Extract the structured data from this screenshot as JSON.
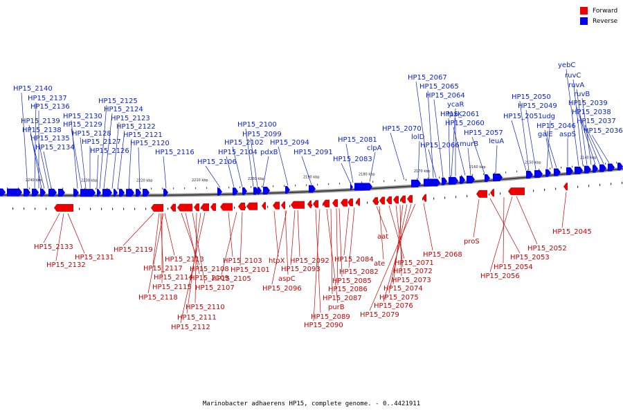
{
  "legend": {
    "forward_label": "Forward",
    "reverse_label": "Reverse",
    "forward_color": "#ee0000",
    "reverse_color": "#0000ee"
  },
  "caption": "Marinobacter adhaerens HP15, complete genome. - 0..4421911",
  "ticks": [
    "2240 kbp",
    "2230 kbp",
    "2220 kbp",
    "2210 kbp",
    "2200 kbp",
    "2190 kbp",
    "2180 kbp",
    "2170 kbp",
    "2160 kbp",
    "2150 kbp",
    "2140 kbp"
  ],
  "reverse_labels": [
    "HP15_2140",
    "HP15_2137",
    "HP15_2136",
    "HP15_2139",
    "HP15_2138",
    "HP15_2135",
    "HP15_2134",
    "HP15_2130",
    "HP15_2129",
    "HP15_2128",
    "HP15_2127",
    "HP15_2126",
    "HP15_2125",
    "HP15_2124",
    "HP15_2123",
    "HP15_2122",
    "HP15_2121",
    "HP15_2120",
    "HP15_2116",
    "HP15_2106",
    "HP15_2104",
    "HP15_2102",
    "HP15_2100",
    "HP15_2099",
    "pdxB",
    "HP15_2094",
    "HP15_2091",
    "HP15_2081",
    "clpA",
    "HP15_2083",
    "HP15_2070",
    "lolD",
    "HP15_2067",
    "HP15_2065",
    "HP15_2064",
    "ycaR",
    "HP15_2066",
    "lpxK",
    "HP15_2061",
    "HP15_2060",
    "murB",
    "HP15_2057",
    "leuA",
    "HP15_2050",
    "HP15_2049",
    "HP15_2051",
    "udg",
    "galE",
    "HP15_2046",
    "aspS",
    "yebC",
    "ruvC",
    "ruvA",
    "ruvB",
    "HP15_2039",
    "HP15_2038",
    "HP15_2037",
    "HP15_2036"
  ],
  "forward_labels": [
    "HP15_2133",
    "HP15_2131",
    "HP15_2132",
    "HP15_2119",
    "HP15_2113",
    "HP15_2117",
    "HP15_2114",
    "HP15_2115",
    "HP15_2118",
    "HP15_2108",
    "HP15_2109",
    "HP15_2107",
    "HP15_2110",
    "HP15_2111",
    "HP15_2112",
    "HP15_2103",
    "HP15_2101",
    "HP15_2105",
    "htpX",
    "aspC",
    "HP15_2096",
    "HP15_2092",
    "HP15_2093",
    "HP15_2089",
    "HP15_2090",
    "purB",
    "HP15_2087",
    "HP15_2086",
    "HP15_2085",
    "HP15_2084",
    "HP15_2082",
    "aat",
    "ate",
    "HP15_2071",
    "HP15_2072",
    "HP15_2073",
    "HP15_2074",
    "HP15_2075",
    "HP15_2076",
    "HP15_2079",
    "HP15_2068",
    "proS",
    "HP15_2053",
    "HP15_2052",
    "HP15_2054",
    "HP15_2056",
    "HP15_2045"
  ]
}
